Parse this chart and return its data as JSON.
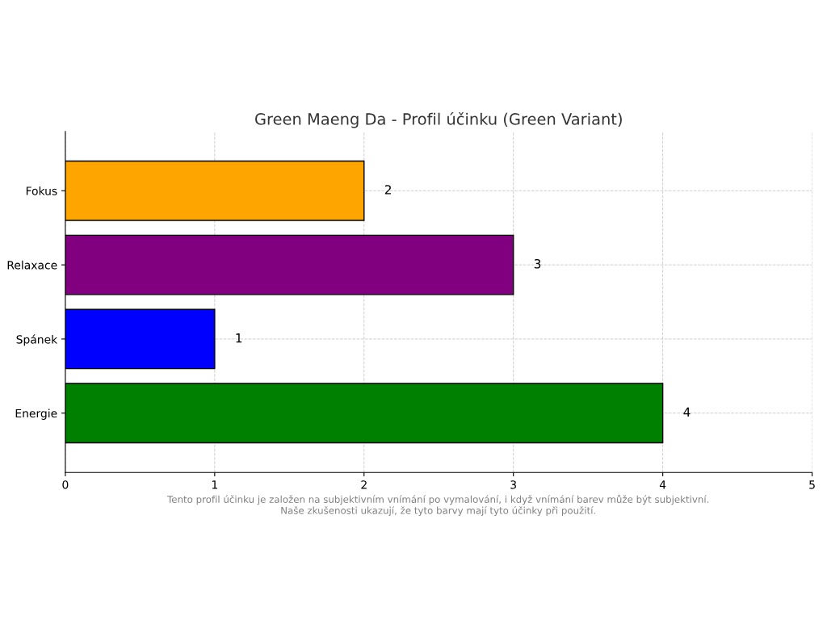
{
  "chart_data": {
    "type": "bar",
    "orientation": "horizontal",
    "title": "Green Maeng Da - Profil účinku (Green Variant)",
    "categories": [
      "Fokus",
      "Relaxace",
      "Spánek",
      "Energie"
    ],
    "values": [
      2,
      3,
      1,
      4
    ],
    "colors": [
      "#ffa500",
      "#800080",
      "#0000ff",
      "#008000"
    ],
    "xlim": [
      0,
      5
    ],
    "xticks": [
      0,
      1,
      2,
      3,
      4,
      5
    ],
    "grid": true,
    "data_labels": true,
    "annotations": [
      "Tento profil účinku je založen na subjektivním vnímání po vymalování, i když vnímání barev může být subjektivní.\nNaše zkušenosti ukazují, že tyto barvy mají tyto účinky při použití."
    ]
  }
}
